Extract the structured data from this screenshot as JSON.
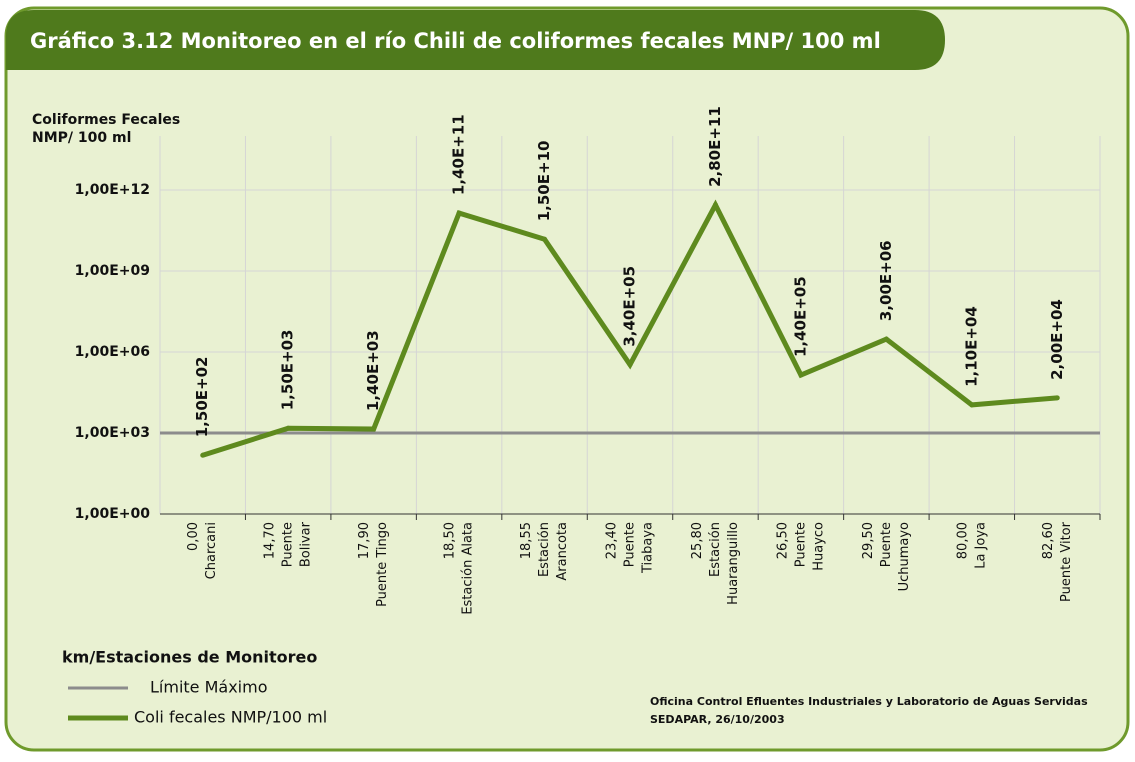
{
  "chart_data": {
    "type": "line",
    "title": "Gráfico 3.12 Monitoreo en el río Chili de coliformes fecales MNP/ 100 ml",
    "y_label": [
      "Coliformes Fecales",
      "NMP/ 100 ml"
    ],
    "x_label": "km/Estaciones de Monitoreo",
    "source": [
      "Oficina Control Efluentes Industriales y Laboratorio de Aguas Servidas",
      "SEDAPAR, 26/10/2003"
    ],
    "categories": [
      [
        "0,00",
        "Charcani"
      ],
      [
        "14,70",
        "Puente",
        "Bolivar"
      ],
      [
        "17,90",
        "Puente Tingo"
      ],
      [
        "18,50",
        "Estación Alata"
      ],
      [
        "18,55",
        "Estación",
        "Arancota"
      ],
      [
        "23,40",
        "Puente",
        "Tiabaya"
      ],
      [
        "25,80",
        "Estación",
        "Huaranguillo"
      ],
      [
        "26,50",
        "Puente",
        "Huayco"
      ],
      [
        "29,50",
        "Puente",
        "Uchumayo"
      ],
      [
        "80,00",
        "La Joya"
      ],
      [
        "82,60",
        "Puente Vitor"
      ]
    ],
    "series": [
      {
        "name": "Coli fecales NMP/100 ml",
        "color": "#5e8a1e",
        "values": [
          150,
          1500,
          1400,
          140000000000,
          15000000000,
          340000,
          280000000000,
          140000,
          3000000,
          11000,
          20000
        ],
        "value_labels": [
          "1,50E+02",
          "1,50E+03",
          "1,40E+03",
          "1,40E+11",
          "1,50E+10",
          "3,40E+05",
          "2,80E+11",
          "1,40E+05",
          "3,00E+06",
          "1,10E+04",
          "2,00E+04"
        ]
      }
    ],
    "limit": {
      "name": "Límite Máximo",
      "value": 1000,
      "color": "#8c8c8c"
    },
    "log_scale": true,
    "ylim": [
      1,
      100000000000000
    ],
    "yticks": [
      {
        "value": 1,
        "label": "1,00E+00"
      },
      {
        "value": 1000,
        "label": "1,00E+03"
      },
      {
        "value": 1000000,
        "label": "1,00E+06"
      },
      {
        "value": 1000000000,
        "label": "1,00E+09"
      },
      {
        "value": 1000000000000,
        "label": "1,00E+12"
      }
    ],
    "grid": true
  }
}
